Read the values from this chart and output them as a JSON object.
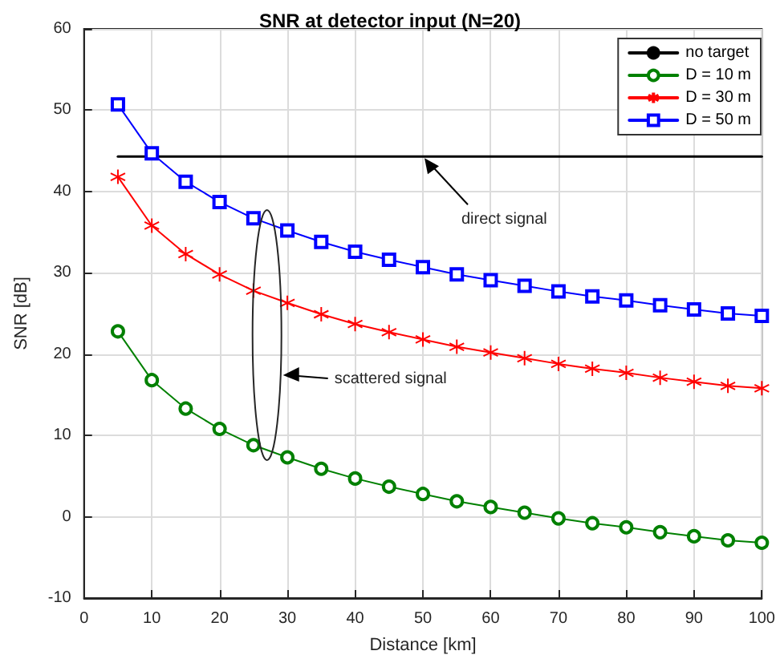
{
  "chart_data": {
    "type": "line",
    "title": "SNR at detector input (N=20)",
    "xlabel": "Distance [km]",
    "ylabel": "SNR [dB]",
    "x": [
      5,
      10,
      15,
      20,
      25,
      30,
      35,
      40,
      45,
      50,
      55,
      60,
      65,
      70,
      75,
      80,
      85,
      90,
      95,
      100
    ],
    "series": [
      {
        "name": "no target",
        "color": "#000000",
        "marker": "none",
        "x": [
          5,
          100
        ],
        "values": [
          44.3,
          44.3
        ]
      },
      {
        "name": "D = 10 m",
        "color": "#008000",
        "marker": "circle",
        "values": [
          22.8,
          16.8,
          13.3,
          10.8,
          8.8,
          7.3,
          5.9,
          4.7,
          3.7,
          2.8,
          1.9,
          1.2,
          0.5,
          -0.2,
          -0.8,
          -1.3,
          -1.9,
          -2.4,
          -2.9,
          -3.2
        ]
      },
      {
        "name": "D = 30 m",
        "color": "#ff0000",
        "marker": "cross",
        "values": [
          41.8,
          35.8,
          32.3,
          29.8,
          27.8,
          26.3,
          24.9,
          23.7,
          22.7,
          21.8,
          20.9,
          20.2,
          19.5,
          18.8,
          18.2,
          17.7,
          17.1,
          16.6,
          16.1,
          15.8
        ]
      },
      {
        "name": "D = 50 m",
        "color": "#0000ff",
        "marker": "square",
        "values": [
          50.7,
          44.7,
          41.2,
          38.7,
          36.7,
          35.2,
          33.8,
          32.6,
          31.6,
          30.7,
          29.8,
          29.1,
          28.4,
          27.7,
          27.1,
          26.6,
          26.0,
          25.5,
          25.0,
          24.7
        ]
      }
    ],
    "xlim": [
      0,
      100
    ],
    "xticks": [
      0,
      10,
      20,
      30,
      40,
      50,
      60,
      70,
      80,
      90,
      100
    ],
    "ylim": [
      -10,
      60
    ],
    "yticks": [
      -10,
      0,
      10,
      20,
      30,
      40,
      50,
      60
    ],
    "grid": true,
    "legend": "top right",
    "line_style": "solid",
    "annotations": [
      {
        "text": "direct signal",
        "x": 50,
        "y": 44.3
      },
      "scattered signal"
    ]
  }
}
